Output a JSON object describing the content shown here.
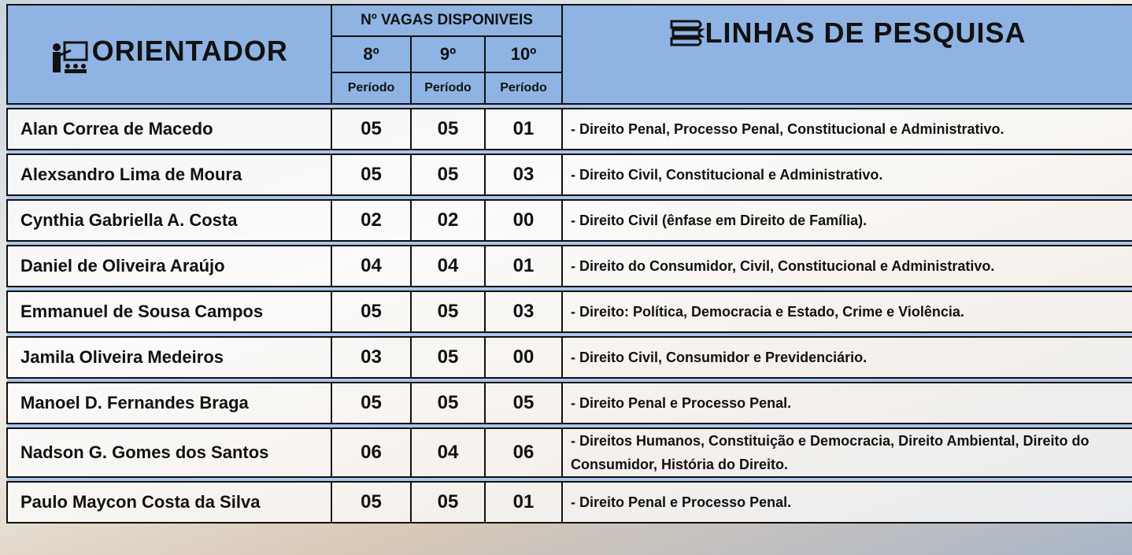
{
  "header": {
    "orientador": "ORIENTADOR",
    "vagas": "Nº VAGAS DISPONIVEIS",
    "periods": [
      {
        "number": "8º",
        "label": "Período"
      },
      {
        "number": "9º",
        "label": "Período"
      },
      {
        "number": "10º",
        "label": "Período"
      }
    ],
    "linhas": "LINHAS DE PESQUISA"
  },
  "table": {
    "rows": [
      [
        "Alan Correa de Macedo",
        "05",
        "05",
        "01",
        "- Direito Penal, Processo Penal, Constitucional e Administrativo."
      ],
      [
        "Alexsandro Lima de Moura",
        "05",
        "05",
        "03",
        "- Direito Civil, Constitucional e Administrativo."
      ],
      [
        "Cynthia Gabriella A. Costa",
        "02",
        "02",
        "00",
        "- Direito Civil (ênfase em Direito de Família)."
      ],
      [
        "Daniel de Oliveira Araújo",
        "04",
        "04",
        "01",
        "- Direito do Consumidor, Civil, Constitucional e Administrativo."
      ],
      [
        "Emmanuel de Sousa Campos",
        "05",
        "05",
        "03",
        "- Direito: Política, Democracia e Estado, Crime e Violência."
      ],
      [
        "Jamila Oliveira Medeiros",
        "03",
        "05",
        "00",
        "- Direito Civil, Consumidor e Previdenciário."
      ],
      [
        "Manoel D. Fernandes Braga",
        "05",
        "05",
        "05",
        "- Direito Penal e Processo Penal."
      ],
      [
        "Nadson G. Gomes dos Santos",
        "06",
        "04",
        "06",
        "- Direitos Humanos, Constituição e Democracia, Direito Ambiental, Direito do Consumidor, História do Direito."
      ],
      [
        "Paulo Maycon Costa da Silva",
        "05",
        "05",
        "01",
        "- Direito Penal e Processo Penal."
      ]
    ]
  }
}
